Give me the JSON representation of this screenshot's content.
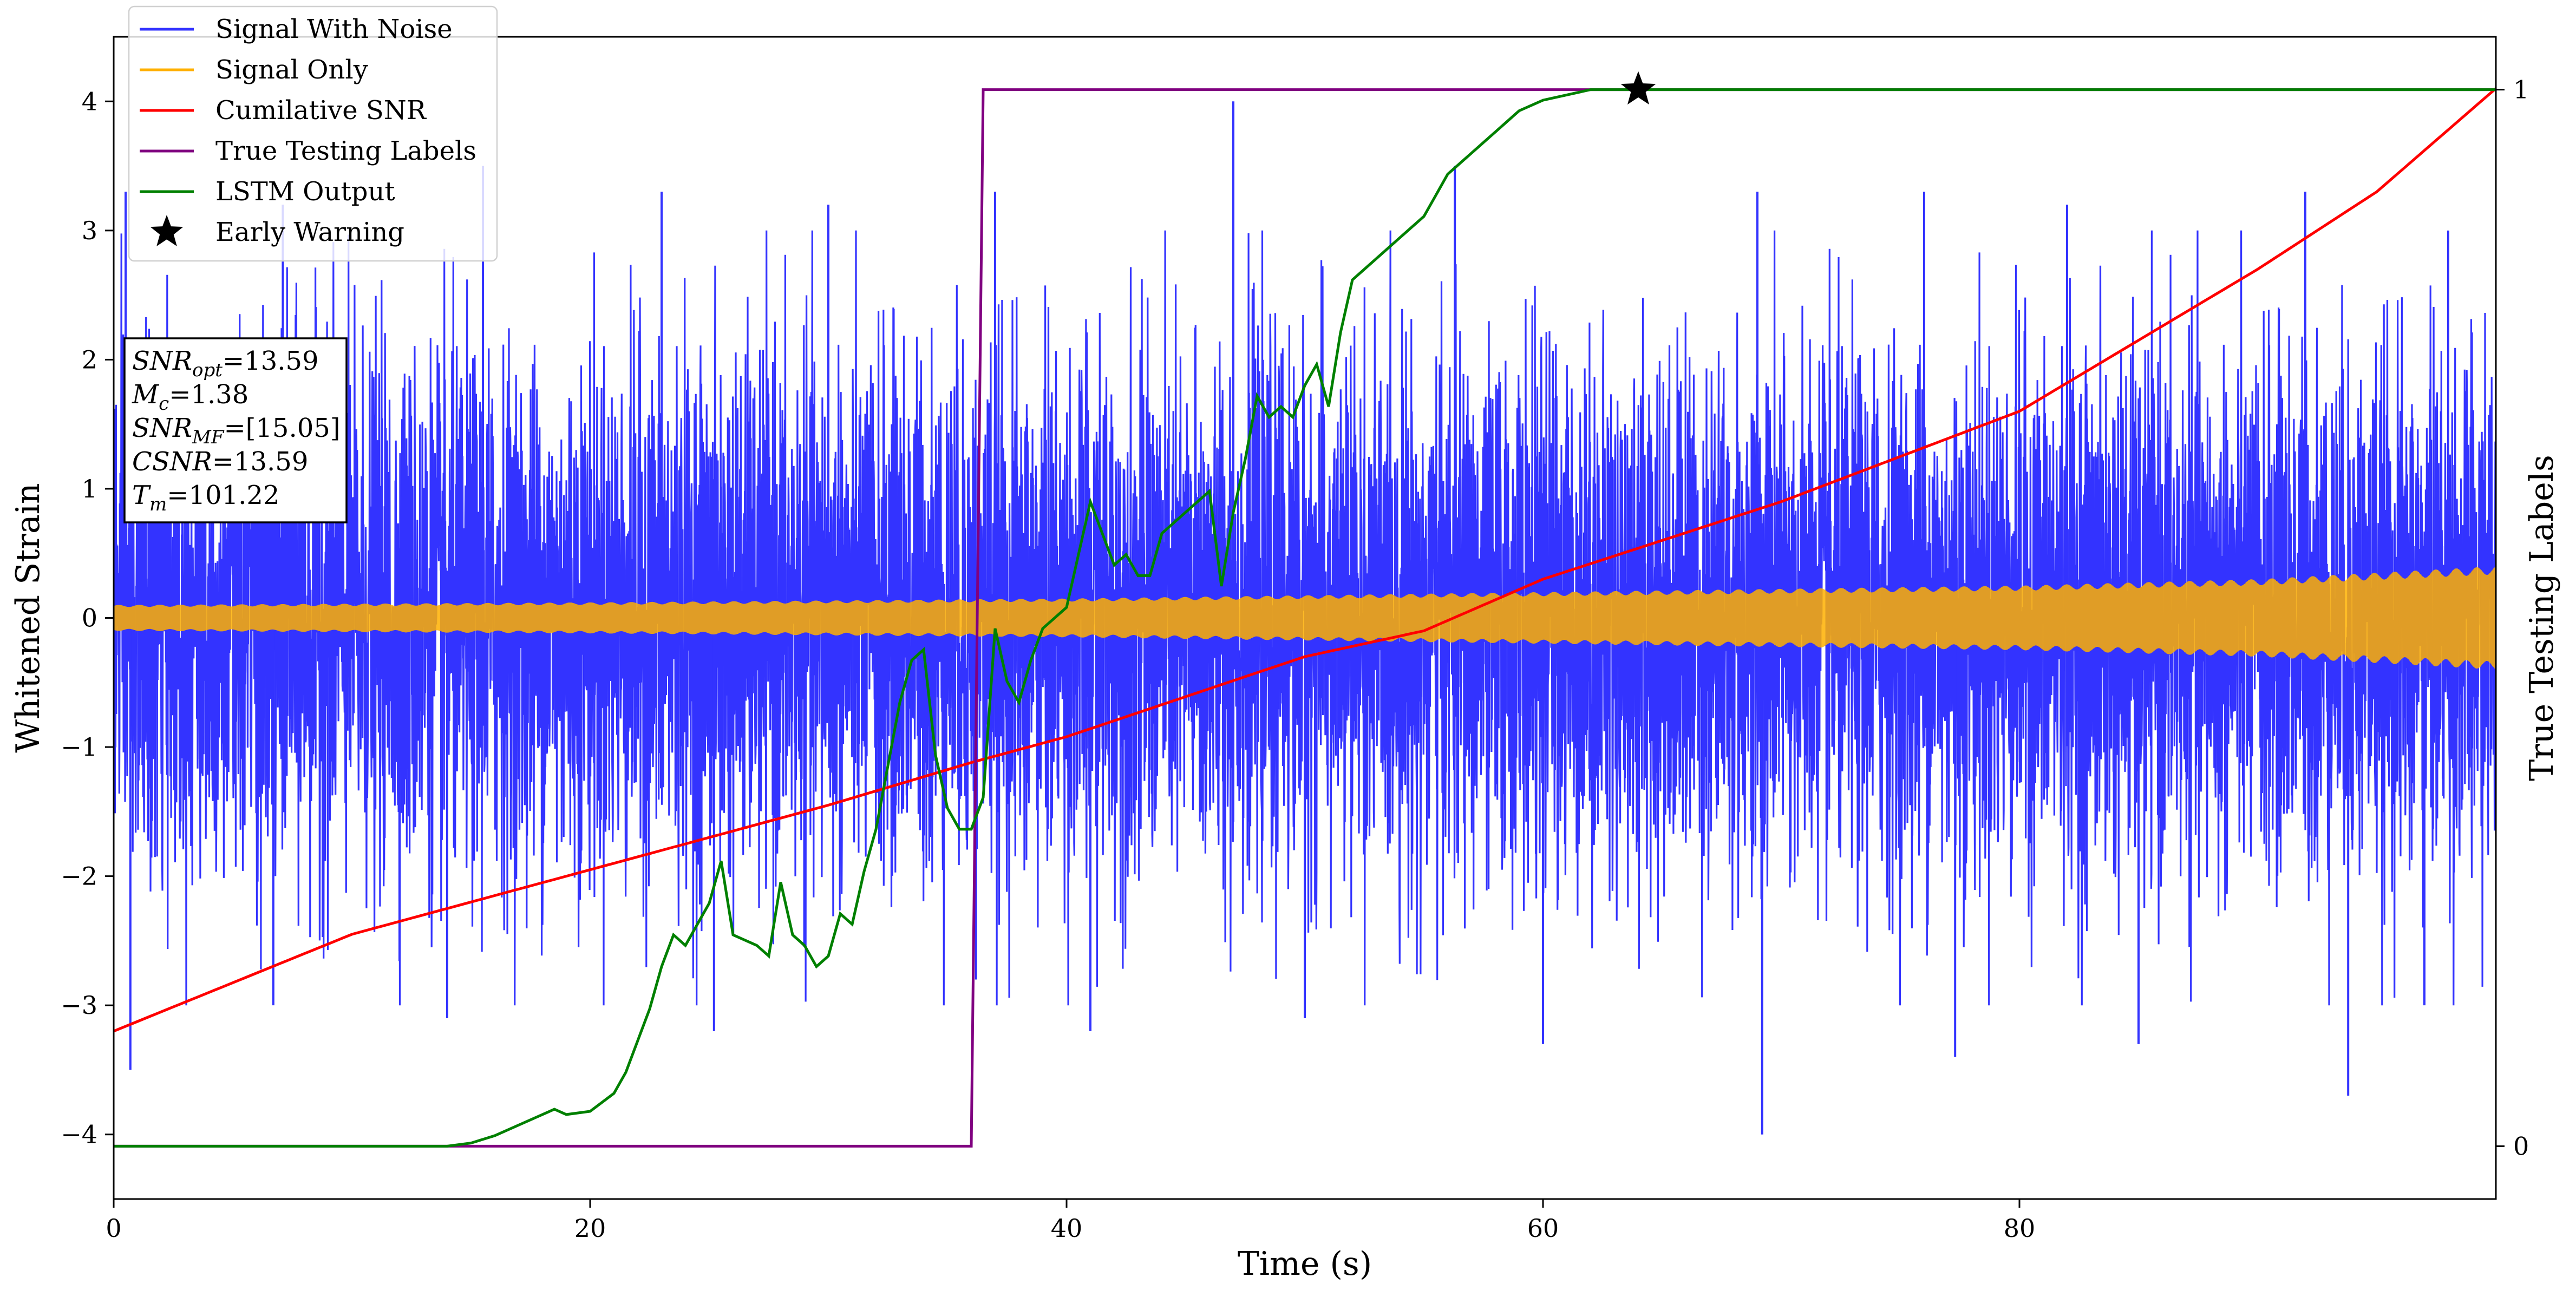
{
  "chart_data": {
    "type": "line",
    "title": "",
    "xlabel": "Time (s)",
    "ylabel": "Whitened Strain",
    "y2label": "True Testing Labels",
    "xlim": [
      0,
      100
    ],
    "ylim": [
      -4.5,
      4.5
    ],
    "y2lim": [
      -0.05,
      1.05
    ],
    "xticks": [
      0,
      20,
      40,
      60,
      80
    ],
    "yticks": [
      -4,
      -3,
      -2,
      -1,
      0,
      1,
      2,
      3,
      4
    ],
    "y2ticks": [
      0,
      1
    ],
    "xtick_labels": [
      "0",
      "20",
      "40",
      "60",
      "80"
    ],
    "ytick_labels": [
      "−4",
      "−3",
      "−2",
      "−1",
      "0",
      "1",
      "2",
      "3",
      "4"
    ],
    "y2tick_labels": [
      "0",
      "1"
    ],
    "grid": false,
    "legend": {
      "placement": "top-left",
      "entries": [
        {
          "label": "Signal With Noise",
          "color": "#3333ff",
          "marker": "line"
        },
        {
          "label": "Signal Only",
          "color": "#ffb000",
          "marker": "line"
        },
        {
          "label": "Cumilative SNR",
          "color": "#ff0000",
          "marker": "line"
        },
        {
          "label": "True Testing Labels",
          "color": "#800080",
          "marker": "line"
        },
        {
          "label": "LSTM Output",
          "color": "#008000",
          "marker": "line"
        },
        {
          "label": "Early Warning",
          "color": "#000000",
          "marker": "star"
        }
      ]
    },
    "annotation": {
      "placement": "left",
      "lines": [
        {
          "var": "SNR",
          "sub": "opt",
          "value": "=13.59"
        },
        {
          "var": "M",
          "sub": "c",
          "value": "=1.38"
        },
        {
          "var": "SNR",
          "sub": "MF",
          "value": "=[15.05]"
        },
        {
          "var": "CSNR",
          "sub": "",
          "value": "=13.59"
        },
        {
          "var": "T",
          "sub": "m",
          "value": "=101.22"
        }
      ]
    },
    "series": [
      {
        "name": "Signal With Noise",
        "axis": "left",
        "color": "#3333ff",
        "style": "dense noisy band, mean 0, std about 1.0; core band about -1.5 to +1.5, spikes to about +/-3.5",
        "x_range": [
          0,
          100
        ],
        "noise_std": 1.0,
        "spikes": [
          {
            "x": 0.5,
            "y": 3.3
          },
          {
            "x": 0.7,
            "y": -3.5
          },
          {
            "x": 7.1,
            "y": 3.2
          },
          {
            "x": 6.7,
            "y": -3.0
          },
          {
            "x": 15.5,
            "y": 3.5
          },
          {
            "x": 14.0,
            "y": -3.1
          },
          {
            "x": 23.0,
            "y": 3.3
          },
          {
            "x": 25.2,
            "y": -3.2
          },
          {
            "x": 30.0,
            "y": 3.2
          },
          {
            "x": 36.2,
            "y": -2.8
          },
          {
            "x": 37.0,
            "y": 3.3
          },
          {
            "x": 41.0,
            "y": -3.2
          },
          {
            "x": 47.0,
            "y": 4.0
          },
          {
            "x": 50.0,
            "y": -3.1
          },
          {
            "x": 56.3,
            "y": 3.5
          },
          {
            "x": 60.0,
            "y": -3.3
          },
          {
            "x": 69.0,
            "y": 3.3
          },
          {
            "x": 69.2,
            "y": -4.0
          },
          {
            "x": 76.0,
            "y": 3.3
          },
          {
            "x": 77.3,
            "y": -3.4
          },
          {
            "x": 82.0,
            "y": 3.2
          },
          {
            "x": 85.0,
            "y": -3.3
          },
          {
            "x": 92.0,
            "y": 3.3
          },
          {
            "x": 93.8,
            "y": -3.7
          },
          {
            "x": 98.0,
            "y": 3.0
          },
          {
            "x": 97.0,
            "y": -3.0
          }
        ]
      },
      {
        "name": "Signal Only",
        "axis": "left",
        "color": "#ffb000",
        "style": "chirp oscillation filling a band, amplitude grows over time",
        "amplitude": {
          "x": [
            0,
            20,
            40,
            60,
            80,
            90,
            100
          ],
          "y": [
            0.1,
            0.12,
            0.15,
            0.2,
            0.25,
            0.3,
            0.4
          ]
        }
      },
      {
        "name": "Cumilative SNR",
        "axis": "left",
        "color": "#ff0000",
        "x": [
          0,
          10,
          20,
          30,
          36,
          40,
          50,
          55,
          60,
          70,
          80,
          90,
          95,
          100
        ],
        "y": [
          -3.2,
          -2.45,
          -1.95,
          -1.45,
          -1.12,
          -0.92,
          -0.3,
          -0.1,
          0.3,
          0.9,
          1.6,
          2.7,
          3.3,
          4.1
        ]
      },
      {
        "name": "True Testing Labels",
        "axis": "right",
        "color": "#800080",
        "x": [
          0,
          36.0,
          36.5,
          100
        ],
        "y": [
          0,
          0,
          1,
          1
        ]
      },
      {
        "name": "LSTM Output",
        "axis": "right",
        "color": "#008000",
        "x": [
          0,
          14,
          15,
          16,
          17,
          18,
          18.5,
          19,
          20,
          21,
          21.5,
          22,
          22.5,
          23,
          23.5,
          24,
          24.5,
          25,
          25.5,
          26,
          27,
          27.5,
          28,
          28.5,
          29,
          29.5,
          30,
          30.5,
          31,
          31.5,
          32,
          33,
          33.5,
          34,
          34.5,
          35,
          35.5,
          36,
          36.5,
          37,
          37.5,
          38,
          38.5,
          39,
          39.5,
          40,
          41,
          41.5,
          42,
          42.5,
          43,
          43.5,
          44,
          44.5,
          45,
          45.5,
          46,
          46.5,
          47,
          47.5,
          48,
          48.5,
          49,
          49.5,
          50,
          50.5,
          51,
          51.5,
          52,
          53,
          54,
          55,
          55.5,
          56,
          57,
          58,
          59,
          60,
          62,
          64,
          66,
          70,
          80,
          100
        ],
        "y": [
          0,
          0,
          0.003,
          0.01,
          0.02,
          0.03,
          0.035,
          0.03,
          0.033,
          0.05,
          0.07,
          0.1,
          0.13,
          0.17,
          0.2,
          0.19,
          0.21,
          0.23,
          0.27,
          0.2,
          0.19,
          0.18,
          0.25,
          0.2,
          0.19,
          0.17,
          0.18,
          0.22,
          0.21,
          0.26,
          0.3,
          0.42,
          0.46,
          0.47,
          0.37,
          0.32,
          0.3,
          0.3,
          0.33,
          0.49,
          0.44,
          0.42,
          0.46,
          0.49,
          0.5,
          0.51,
          0.61,
          0.58,
          0.55,
          0.56,
          0.54,
          0.54,
          0.58,
          0.59,
          0.6,
          0.61,
          0.62,
          0.53,
          0.6,
          0.65,
          0.71,
          0.69,
          0.7,
          0.69,
          0.72,
          0.74,
          0.7,
          0.77,
          0.82,
          0.84,
          0.86,
          0.88,
          0.9,
          0.92,
          0.94,
          0.96,
          0.98,
          0.99,
          1.0,
          1.0,
          1.0,
          1.0,
          1.0,
          1.0
        ]
      },
      {
        "name": "Early Warning",
        "axis": "right",
        "color": "#000000",
        "marker": "star",
        "x": [
          64
        ],
        "y": [
          1.0
        ]
      }
    ]
  }
}
